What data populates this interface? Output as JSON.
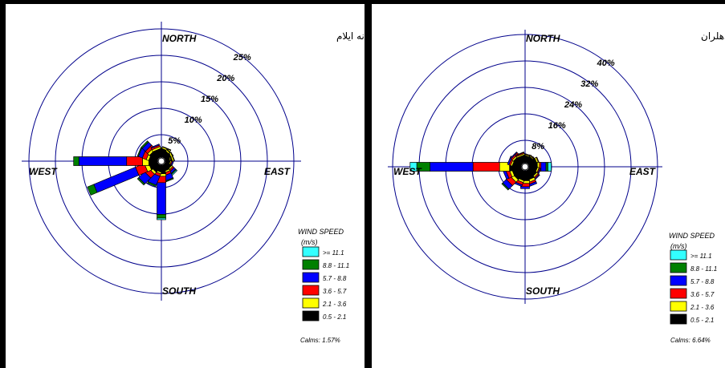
{
  "chart_data": [
    {
      "type": "windrose",
      "title": "گلباد سالانه ایلام",
      "directions_labels": {
        "north": "NORTH",
        "south": "SOUTH",
        "east": "EAST",
        "west": "WEST"
      },
      "ring_labels": [
        "5%",
        "10%",
        "15%",
        "20%",
        "25%"
      ],
      "ring_values": [
        5,
        10,
        15,
        20,
        25
      ],
      "legend_title": [
        "WIND SPEED",
        "(m/s)"
      ],
      "speed_classes": [
        ">= 11.1",
        "8.8 - 11.1",
        "5.7 - 8.8",
        "3.6 - 5.7",
        "2.1 - 3.6",
        "0.5 - 2.1"
      ],
      "class_colors": [
        "#33ffff",
        "#008000",
        "#0000ff",
        "#ff0000",
        "#ffff00",
        "#000000"
      ],
      "calms": "Calms: 1.57%",
      "petals": [
        {
          "angle": 0,
          "values": [
            0,
            0,
            0.1,
            0.2,
            0.3,
            1.2
          ]
        },
        {
          "angle": 22.5,
          "values": [
            0,
            0,
            0,
            0.1,
            0.3,
            1.5
          ]
        },
        {
          "angle": 45,
          "values": [
            0,
            0,
            0,
            0.1,
            0.3,
            1.2
          ]
        },
        {
          "angle": 67.5,
          "values": [
            0,
            0,
            0,
            0.1,
            0.3,
            1.2
          ]
        },
        {
          "angle": 90,
          "values": [
            0,
            0,
            0,
            0.1,
            0.2,
            0.8
          ]
        },
        {
          "angle": 112.5,
          "values": [
            0,
            0,
            0.2,
            0.2,
            0.2,
            0.8
          ]
        },
        {
          "angle": 135,
          "values": [
            0.2,
            0.2,
            0.4,
            0.3,
            0.3,
            1.2
          ]
        },
        {
          "angle": 157.5,
          "values": [
            0,
            0.2,
            1.0,
            0.5,
            0.3,
            1.2
          ]
        },
        {
          "angle": 180,
          "values": [
            0.3,
            0.7,
            6.0,
            1.2,
            0.5,
            1.6
          ]
        },
        {
          "angle": 202.5,
          "values": [
            0,
            0.3,
            1.8,
            0.5,
            0.3,
            1.2
          ]
        },
        {
          "angle": 225,
          "values": [
            0,
            0.3,
            1.6,
            1.0,
            0.5,
            1.4
          ]
        },
        {
          "angle": 247.5,
          "values": [
            0,
            1.3,
            8.5,
            1.8,
            0.8,
            1.6
          ]
        },
        {
          "angle": 270,
          "values": [
            0,
            1.0,
            9.0,
            3.0,
            1.2,
            1.6
          ]
        },
        {
          "angle": 292.5,
          "values": [
            0,
            0.2,
            0.8,
            0.8,
            0.5,
            1.5
          ]
        },
        {
          "angle": 315,
          "values": [
            0,
            0.3,
            0.8,
            0.6,
            0.5,
            1.6
          ]
        },
        {
          "angle": 337.5,
          "values": [
            0,
            0,
            0.2,
            0.3,
            0.4,
            1.5
          ]
        }
      ]
    },
    {
      "type": "windrose",
      "title": "گلباد سالانه دهلران",
      "directions_labels": {
        "north": "NORTH",
        "south": "SOUTH",
        "east": "EAST",
        "west": "WEST"
      },
      "ring_labels": [
        "8%",
        "16%",
        "24%",
        "32%",
        "40%"
      ],
      "ring_values": [
        8,
        16,
        24,
        32,
        40
      ],
      "legend_title": [
        "WIND SPEED",
        "(m/s)"
      ],
      "speed_classes": [
        ">= 11.1",
        "8.8 - 11.1",
        "5.7 - 8.8",
        "3.6 - 5.7",
        "2.1 - 3.6",
        "0.5 - 2.1"
      ],
      "class_colors": [
        "#33ffff",
        "#008000",
        "#0000ff",
        "#ff0000",
        "#ffff00",
        "#000000"
      ],
      "calms": "Calms: 6.64%",
      "petals": [
        {
          "angle": 0,
          "values": [
            0,
            0,
            0,
            0.1,
            0.3,
            2.0
          ]
        },
        {
          "angle": 22.5,
          "values": [
            0,
            0,
            0,
            0.2,
            0.3,
            2.0
          ]
        },
        {
          "angle": 45,
          "values": [
            0,
            0,
            0,
            0.2,
            0.3,
            2.0
          ]
        },
        {
          "angle": 67.5,
          "values": [
            0,
            0,
            0,
            0.2,
            0.5,
            2.5
          ]
        },
        {
          "angle": 90,
          "values": [
            1.0,
            0.6,
            1.5,
            0.5,
            0.6,
            2.5
          ]
        },
        {
          "angle": 112.5,
          "values": [
            0,
            0,
            0.3,
            0.3,
            0.5,
            2.3
          ]
        },
        {
          "angle": 135,
          "values": [
            0,
            0,
            0.3,
            0.4,
            0.5,
            2.5
          ]
        },
        {
          "angle": 157.5,
          "values": [
            0,
            0,
            0.6,
            0.6,
            0.8,
            2.8
          ]
        },
        {
          "angle": 180,
          "values": [
            0,
            0,
            0.6,
            1.0,
            0.8,
            3.0
          ]
        },
        {
          "angle": 202.5,
          "values": [
            0,
            0,
            0.5,
            0.8,
            0.6,
            2.8
          ]
        },
        {
          "angle": 225,
          "values": [
            0,
            0.4,
            1.5,
            1.5,
            1.0,
            3.0
          ]
        },
        {
          "angle": 247.5,
          "values": [
            0,
            0,
            0.8,
            1.0,
            0.8,
            2.8
          ]
        },
        {
          "angle": 270,
          "values": [
            2.0,
            4.0,
            13.0,
            8.0,
            3.0,
            3.5
          ]
        },
        {
          "angle": 292.5,
          "values": [
            0,
            0,
            0.5,
            0.5,
            0.5,
            2.5
          ]
        },
        {
          "angle": 315,
          "values": [
            0,
            0,
            0.3,
            0.5,
            0.5,
            2.5
          ]
        },
        {
          "angle": 337.5,
          "values": [
            0,
            0,
            0.2,
            0.3,
            0.4,
            2.2
          ]
        }
      ]
    }
  ]
}
